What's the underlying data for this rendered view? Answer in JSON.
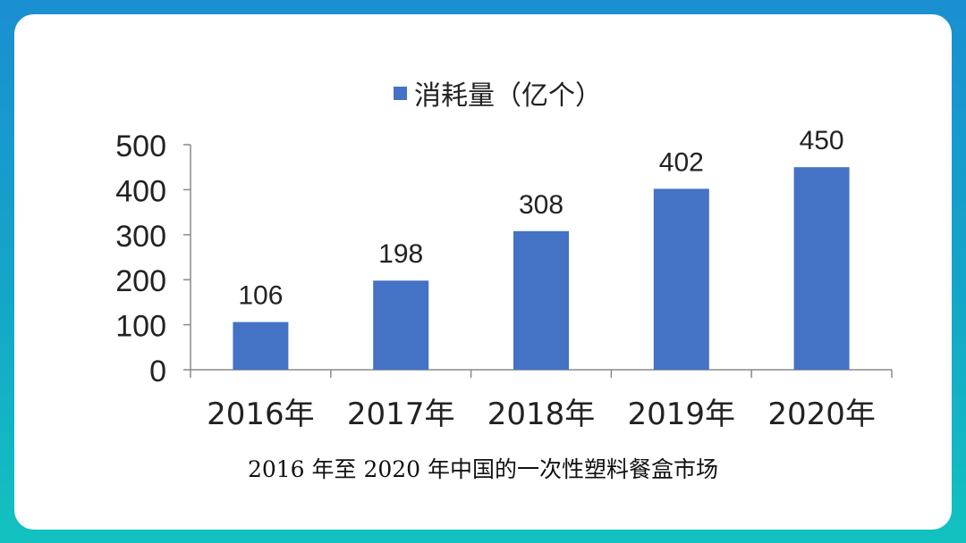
{
  "caption": "2016 年至 2020 年中国的一次性塑料餐盒市场",
  "chart_data": {
    "type": "bar",
    "categories": [
      "2016年",
      "2017年",
      "2018年",
      "2019年",
      "2020年"
    ],
    "series": [
      {
        "name": "消耗量（亿个）",
        "values": [
          106,
          198,
          308,
          402,
          450
        ],
        "color": "#4472c4"
      }
    ],
    "yticks": [
      0,
      100,
      200,
      300,
      400,
      500
    ],
    "ylim": [
      0,
      500
    ],
    "legend": "top-center",
    "grid": false,
    "data_labels": true
  }
}
